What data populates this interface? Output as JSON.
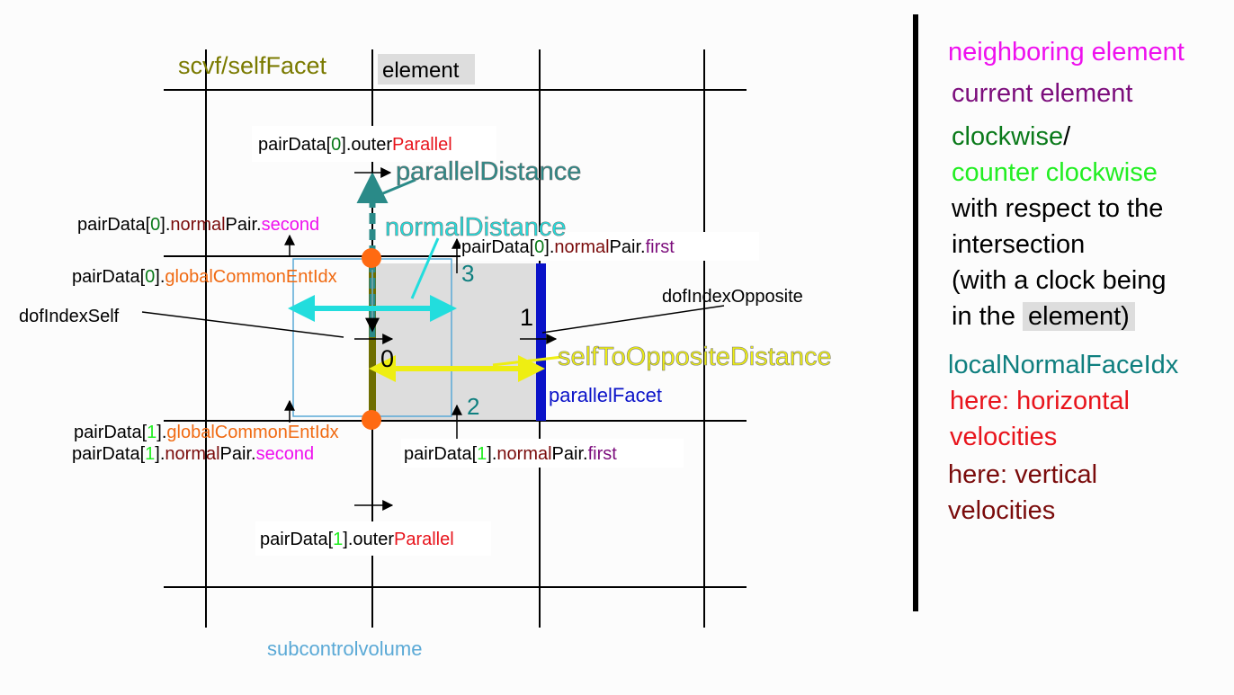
{
  "colors": {
    "grid": "#000000",
    "element_fill": "#dddddd",
    "subcontrolvolume": "#5aa9d6",
    "outer_parallel_red": "#e8141c",
    "normal_pair_darkred": "#7a0b0b",
    "green_dark": "#0a7a1a",
    "green_light": "#22ee22",
    "magenta": "#ee10ee",
    "purple": "#7c0d7c",
    "orange": "#f06a12",
    "teal": "#0f7f7f",
    "cyan": "#22dddd",
    "yellow": "#eeee12",
    "olive": "#7a7a00",
    "blue": "#0a12c8",
    "dot_orange": "#ff6a12"
  },
  "diagram": {
    "title_scvf": "scvf/selfFacet",
    "element_label": "element",
    "subcontrolvolume_label": "subcontrolvolume",
    "parallel_distance": "parallelDistance",
    "normal_distance": "normalDistance",
    "self_to_opposite_distance": "selfToOppositeDistance",
    "parallel_facet": "parallelFacet",
    "dof_index_self": "dofIndexSelf",
    "dof_index_opposite": "dofIndexOpposite",
    "num_0": "0",
    "num_1": "1",
    "num_2": "2",
    "num_3": "3",
    "pd0_outer": {
      "p1": "pairData[",
      "idx": "0",
      "p2": "].outer",
      "p3": "Parallel"
    },
    "pd0_normal_second": {
      "p1": "pairData[",
      "idx": "0",
      "p2": "].",
      "p3": "normal",
      "p4": "Pair.",
      "p5": "second"
    },
    "pd0_global": {
      "p1": "pairData[",
      "idx": "0",
      "p2": "].",
      "p3": "globalCommonEntIdx"
    },
    "pd0_normal_first": {
      "p1": "pairData[",
      "idx": "0",
      "p2": "].",
      "p3": "normal",
      "p4": "Pair.",
      "p5": "first"
    },
    "pd1_global": {
      "p1": "pairData[",
      "idx": "1",
      "p2": "].",
      "p3": "globalCommonEntIdx"
    },
    "pd1_normal_second": {
      "p1": "pairData[",
      "idx": "1",
      "p2": "].",
      "p3": "normal",
      "p4": "Pair.",
      "p5": "second"
    },
    "pd1_normal_first": {
      "p1": "pairData[",
      "idx": "1",
      "p2": "].",
      "p3": "normal",
      "p4": "Pair.",
      "p5": "first"
    },
    "pd1_outer": {
      "p1": "pairData[",
      "idx": "1",
      "p2": "].outer",
      "p3": "Parallel"
    }
  },
  "legend": {
    "neighboring_element": "neighboring element",
    "current_element": "current element",
    "clockwise": "clockwise",
    "slash": "/",
    "counter_clockwise": "counter clockwise",
    "respect_line1": "with respect to the",
    "respect_line2": "intersection",
    "respect_line3": "(with a clock being",
    "respect_line4a": "in the ",
    "respect_line4b": "element",
    "respect_line4c": ")",
    "local_normal_face_idx": "localNormalFaceIdx",
    "horizontal_line1": "here: horizontal",
    "horizontal_line2": "velocities",
    "vertical_line1": "here: vertical",
    "vertical_line2": "velocities"
  }
}
